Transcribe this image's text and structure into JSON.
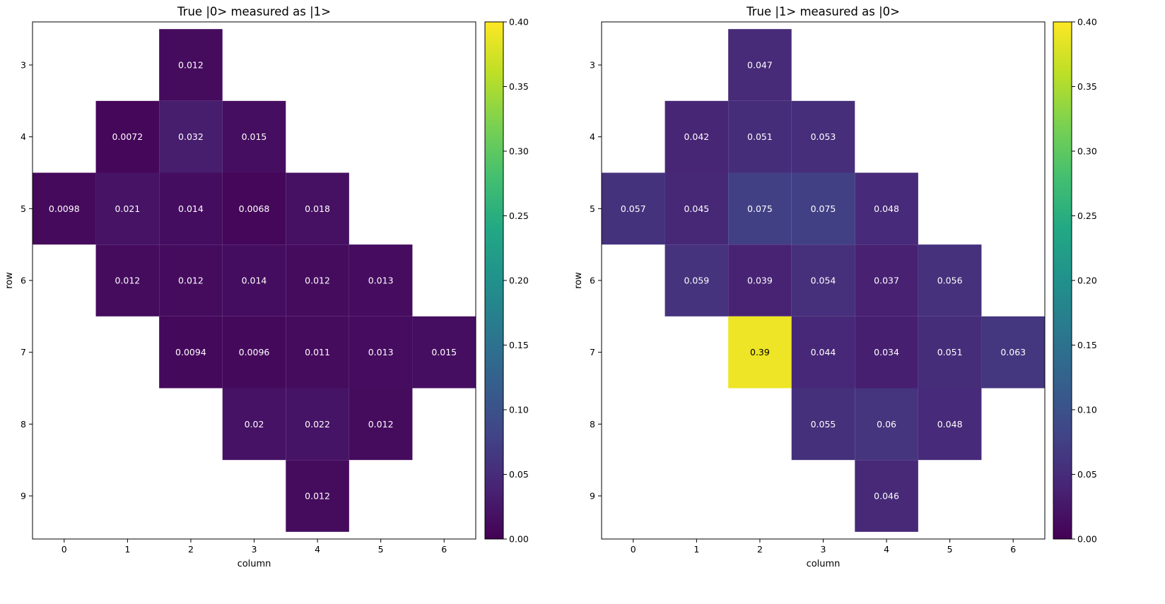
{
  "chart_data": [
    {
      "type": "heatmap",
      "title": "True |0> measured as |1>",
      "xlabel": "column",
      "ylabel": "row",
      "x_ticks": [
        "0",
        "1",
        "2",
        "3",
        "4",
        "5",
        "6"
      ],
      "y_ticks": [
        "3",
        "4",
        "5",
        "6",
        "7",
        "8",
        "9"
      ],
      "xlim": [
        -0.5,
        6.5
      ],
      "ylim": [
        9.6,
        2.4
      ],
      "colormap": "viridis",
      "clim": [
        0,
        0.4
      ],
      "colorbar_ticks": [
        "0.00",
        "0.05",
        "0.10",
        "0.15",
        "0.20",
        "0.25",
        "0.30",
        "0.35",
        "0.40"
      ],
      "cells": [
        {
          "row": 3,
          "col": 2,
          "value": 0.012,
          "label": "0.012"
        },
        {
          "row": 4,
          "col": 1,
          "value": 0.0072,
          "label": "0.0072"
        },
        {
          "row": 4,
          "col": 2,
          "value": 0.032,
          "label": "0.032"
        },
        {
          "row": 4,
          "col": 3,
          "value": 0.015,
          "label": "0.015"
        },
        {
          "row": 5,
          "col": 0,
          "value": 0.0098,
          "label": "0.0098"
        },
        {
          "row": 5,
          "col": 1,
          "value": 0.021,
          "label": "0.021"
        },
        {
          "row": 5,
          "col": 2,
          "value": 0.014,
          "label": "0.014"
        },
        {
          "row": 5,
          "col": 3,
          "value": 0.0068,
          "label": "0.0068"
        },
        {
          "row": 5,
          "col": 4,
          "value": 0.018,
          "label": "0.018"
        },
        {
          "row": 6,
          "col": 1,
          "value": 0.012,
          "label": "0.012"
        },
        {
          "row": 6,
          "col": 2,
          "value": 0.012,
          "label": "0.012"
        },
        {
          "row": 6,
          "col": 3,
          "value": 0.014,
          "label": "0.014"
        },
        {
          "row": 6,
          "col": 4,
          "value": 0.012,
          "label": "0.012"
        },
        {
          "row": 6,
          "col": 5,
          "value": 0.013,
          "label": "0.013"
        },
        {
          "row": 7,
          "col": 2,
          "value": 0.0094,
          "label": "0.0094"
        },
        {
          "row": 7,
          "col": 3,
          "value": 0.0096,
          "label": "0.0096"
        },
        {
          "row": 7,
          "col": 4,
          "value": 0.011,
          "label": "0.011"
        },
        {
          "row": 7,
          "col": 5,
          "value": 0.013,
          "label": "0.013"
        },
        {
          "row": 7,
          "col": 6,
          "value": 0.015,
          "label": "0.015"
        },
        {
          "row": 8,
          "col": 3,
          "value": 0.02,
          "label": "0.02"
        },
        {
          "row": 8,
          "col": 4,
          "value": 0.022,
          "label": "0.022"
        },
        {
          "row": 8,
          "col": 5,
          "value": 0.012,
          "label": "0.012"
        },
        {
          "row": 9,
          "col": 4,
          "value": 0.012,
          "label": "0.012"
        }
      ]
    },
    {
      "type": "heatmap",
      "title": "True |1> measured as |0>",
      "xlabel": "column",
      "ylabel": "row",
      "x_ticks": [
        "0",
        "1",
        "2",
        "3",
        "4",
        "5",
        "6"
      ],
      "y_ticks": [
        "3",
        "4",
        "5",
        "6",
        "7",
        "8",
        "9"
      ],
      "xlim": [
        -0.5,
        6.5
      ],
      "ylim": [
        9.6,
        2.4
      ],
      "colormap": "viridis",
      "clim": [
        0,
        0.4
      ],
      "colorbar_ticks": [
        "0.00",
        "0.05",
        "0.10",
        "0.15",
        "0.20",
        "0.25",
        "0.30",
        "0.35",
        "0.40"
      ],
      "cells": [
        {
          "row": 3,
          "col": 2,
          "value": 0.047,
          "label": "0.047"
        },
        {
          "row": 4,
          "col": 1,
          "value": 0.042,
          "label": "0.042"
        },
        {
          "row": 4,
          "col": 2,
          "value": 0.051,
          "label": "0.051"
        },
        {
          "row": 4,
          "col": 3,
          "value": 0.053,
          "label": "0.053"
        },
        {
          "row": 5,
          "col": 0,
          "value": 0.057,
          "label": "0.057"
        },
        {
          "row": 5,
          "col": 1,
          "value": 0.045,
          "label": "0.045"
        },
        {
          "row": 5,
          "col": 2,
          "value": 0.075,
          "label": "0.075"
        },
        {
          "row": 5,
          "col": 3,
          "value": 0.075,
          "label": "0.075"
        },
        {
          "row": 5,
          "col": 4,
          "value": 0.048,
          "label": "0.048"
        },
        {
          "row": 6,
          "col": 1,
          "value": 0.059,
          "label": "0.059"
        },
        {
          "row": 6,
          "col": 2,
          "value": 0.039,
          "label": "0.039"
        },
        {
          "row": 6,
          "col": 3,
          "value": 0.054,
          "label": "0.054"
        },
        {
          "row": 6,
          "col": 4,
          "value": 0.037,
          "label": "0.037"
        },
        {
          "row": 6,
          "col": 5,
          "value": 0.056,
          "label": "0.056"
        },
        {
          "row": 7,
          "col": 2,
          "value": 0.39,
          "label": "0.39"
        },
        {
          "row": 7,
          "col": 3,
          "value": 0.044,
          "label": "0.044"
        },
        {
          "row": 7,
          "col": 4,
          "value": 0.034,
          "label": "0.034"
        },
        {
          "row": 7,
          "col": 5,
          "value": 0.051,
          "label": "0.051"
        },
        {
          "row": 7,
          "col": 6,
          "value": 0.063,
          "label": "0.063"
        },
        {
          "row": 8,
          "col": 3,
          "value": 0.055,
          "label": "0.055"
        },
        {
          "row": 8,
          "col": 4,
          "value": 0.06,
          "label": "0.06"
        },
        {
          "row": 8,
          "col": 5,
          "value": 0.048,
          "label": "0.048"
        },
        {
          "row": 9,
          "col": 4,
          "value": 0.046,
          "label": "0.046"
        }
      ]
    }
  ]
}
